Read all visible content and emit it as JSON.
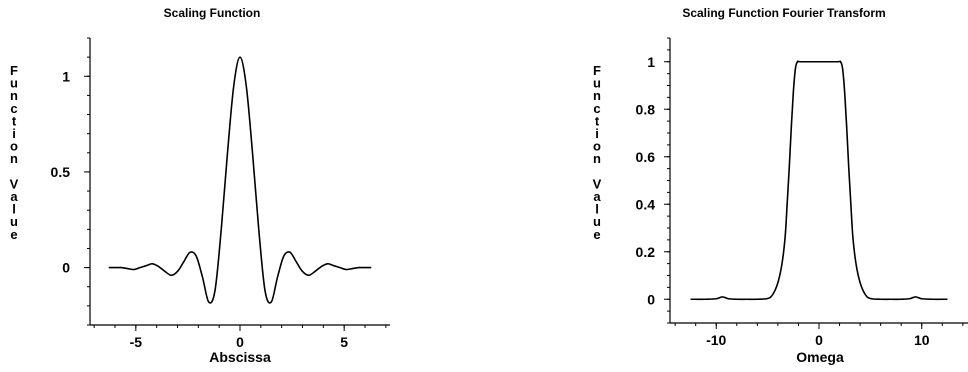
{
  "chart_data": [
    {
      "type": "line",
      "title": "Scaling Function",
      "xlabel": "Abscissa",
      "ylabel": "Function Value",
      "xlim": [
        -7.2,
        7.2
      ],
      "ylim": [
        -0.3,
        1.2
      ],
      "xticks": [
        -5,
        0,
        5
      ],
      "xtick_labels": [
        "-5",
        "0",
        "5"
      ],
      "yticks": [
        0,
        0.5,
        1
      ],
      "ytick_labels": [
        "0",
        "0.5",
        "1"
      ],
      "grid": false,
      "series": [
        {
          "x": [
            -6.3,
            -6.0,
            -5.7,
            -5.4,
            -5.1,
            -4.8,
            -4.5,
            -4.2,
            -3.9,
            -3.6,
            -3.3,
            -3.0,
            -2.7,
            -2.4,
            -2.1,
            -1.8,
            -1.5,
            -1.2,
            -0.9,
            -0.6,
            -0.3,
            0.0,
            0.3,
            0.6,
            0.9,
            1.2,
            1.5,
            1.8,
            2.1,
            2.4,
            2.7,
            3.0,
            3.3,
            3.6,
            3.9,
            4.2,
            4.5,
            4.8,
            5.1,
            5.4,
            5.7,
            6.0,
            6.3
          ],
          "y": [
            0.0,
            0.0,
            0.0,
            -0.005,
            -0.01,
            0.0,
            0.01,
            0.02,
            0.005,
            -0.02,
            -0.04,
            -0.02,
            0.03,
            0.08,
            0.06,
            -0.05,
            -0.18,
            -0.12,
            0.2,
            0.6,
            0.95,
            1.1,
            0.95,
            0.6,
            0.2,
            -0.12,
            -0.18,
            -0.05,
            0.06,
            0.08,
            0.03,
            -0.02,
            -0.04,
            -0.02,
            0.005,
            0.02,
            0.01,
            0.0,
            -0.01,
            -0.005,
            0.0,
            0.0,
            0.0
          ]
        }
      ]
    },
    {
      "type": "line",
      "title": "Scaling Function Fourier Transform",
      "xlabel": "Omega",
      "ylabel": "Function Value",
      "xlim": [
        -14.5,
        14.5
      ],
      "ylim": [
        -0.1,
        1.1
      ],
      "xticks": [
        -10,
        0,
        10
      ],
      "xtick_labels": [
        "-10",
        "0",
        "10"
      ],
      "yticks": [
        0,
        0.2,
        0.4,
        0.6,
        0.8,
        1
      ],
      "ytick_labels": [
        "0",
        "0.2",
        "0.4",
        "0.6",
        "0.8",
        "1"
      ],
      "grid": false,
      "series": [
        {
          "x": [
            -12.5,
            -11,
            -10,
            -9.4,
            -8.8,
            -8,
            -7,
            -6,
            -5,
            -4.5,
            -4,
            -3.6,
            -3.3,
            -3.1,
            -2.9,
            -2.7,
            -2.5,
            -2.3,
            -2.1,
            -1.8,
            0,
            1.8,
            2.1,
            2.3,
            2.5,
            2.7,
            2.9,
            3.1,
            3.3,
            3.6,
            4,
            4.5,
            5,
            6,
            7,
            8,
            8.8,
            9.4,
            10,
            11,
            12.5
          ],
          "y": [
            0,
            0,
            0.002,
            0.01,
            0.002,
            0,
            0,
            0,
            0.003,
            0.02,
            0.07,
            0.15,
            0.26,
            0.4,
            0.55,
            0.72,
            0.87,
            0.97,
            1.0,
            1.0,
            1.0,
            1.0,
            1.0,
            0.97,
            0.87,
            0.72,
            0.55,
            0.4,
            0.26,
            0.15,
            0.07,
            0.02,
            0.003,
            0,
            0,
            0,
            0.002,
            0.01,
            0.002,
            0,
            0
          ]
        }
      ]
    }
  ]
}
